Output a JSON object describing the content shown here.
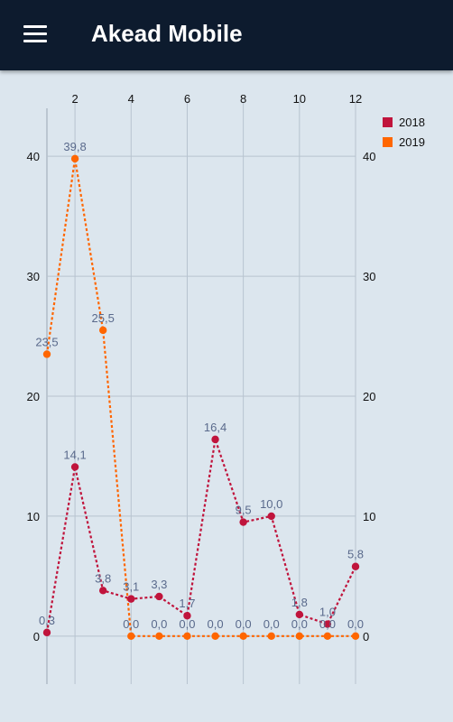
{
  "app": {
    "title": "Akead Mobile",
    "menu_icon": "hamburger-menu-icon"
  },
  "colors": {
    "appbar": "#0d1b2e",
    "background": "#dce6ee",
    "series_2018": "#c0143c",
    "series_2019": "#ff6600"
  },
  "chart_data": {
    "type": "line",
    "x_ticks": [
      2,
      4,
      6,
      8,
      10,
      12
    ],
    "y_ticks": [
      0,
      10,
      20,
      30,
      40
    ],
    "xlim": [
      1,
      12
    ],
    "ylim": [
      -4,
      44
    ],
    "grid": true,
    "legend_position": "top-right",
    "x": [
      1,
      2,
      3,
      4,
      5,
      6,
      7,
      8,
      9,
      10,
      11,
      12
    ],
    "series": [
      {
        "name": "2018",
        "color": "#c0143c",
        "values": [
          0.3,
          14.1,
          3.8,
          3.1,
          3.3,
          1.7,
          16.4,
          9.5,
          10.0,
          1.8,
          1.0,
          5.8
        ],
        "labels": [
          "0,3",
          "14,1",
          "3,8",
          "3,1",
          "3,3",
          "1,7",
          "16,4",
          "9,5",
          "10,0",
          "1,8",
          "1,0",
          "5,8"
        ]
      },
      {
        "name": "2019",
        "color": "#ff6600",
        "values": [
          23.5,
          39.8,
          25.5,
          0,
          0,
          0,
          0,
          0,
          0,
          0,
          0,
          0
        ],
        "labels": [
          "23,5",
          "39,8",
          "25,5",
          "0,0",
          "0,0",
          "0,0",
          "0,0",
          "0,0",
          "0,0",
          "0,0",
          "0,0",
          "0,0"
        ]
      }
    ]
  }
}
